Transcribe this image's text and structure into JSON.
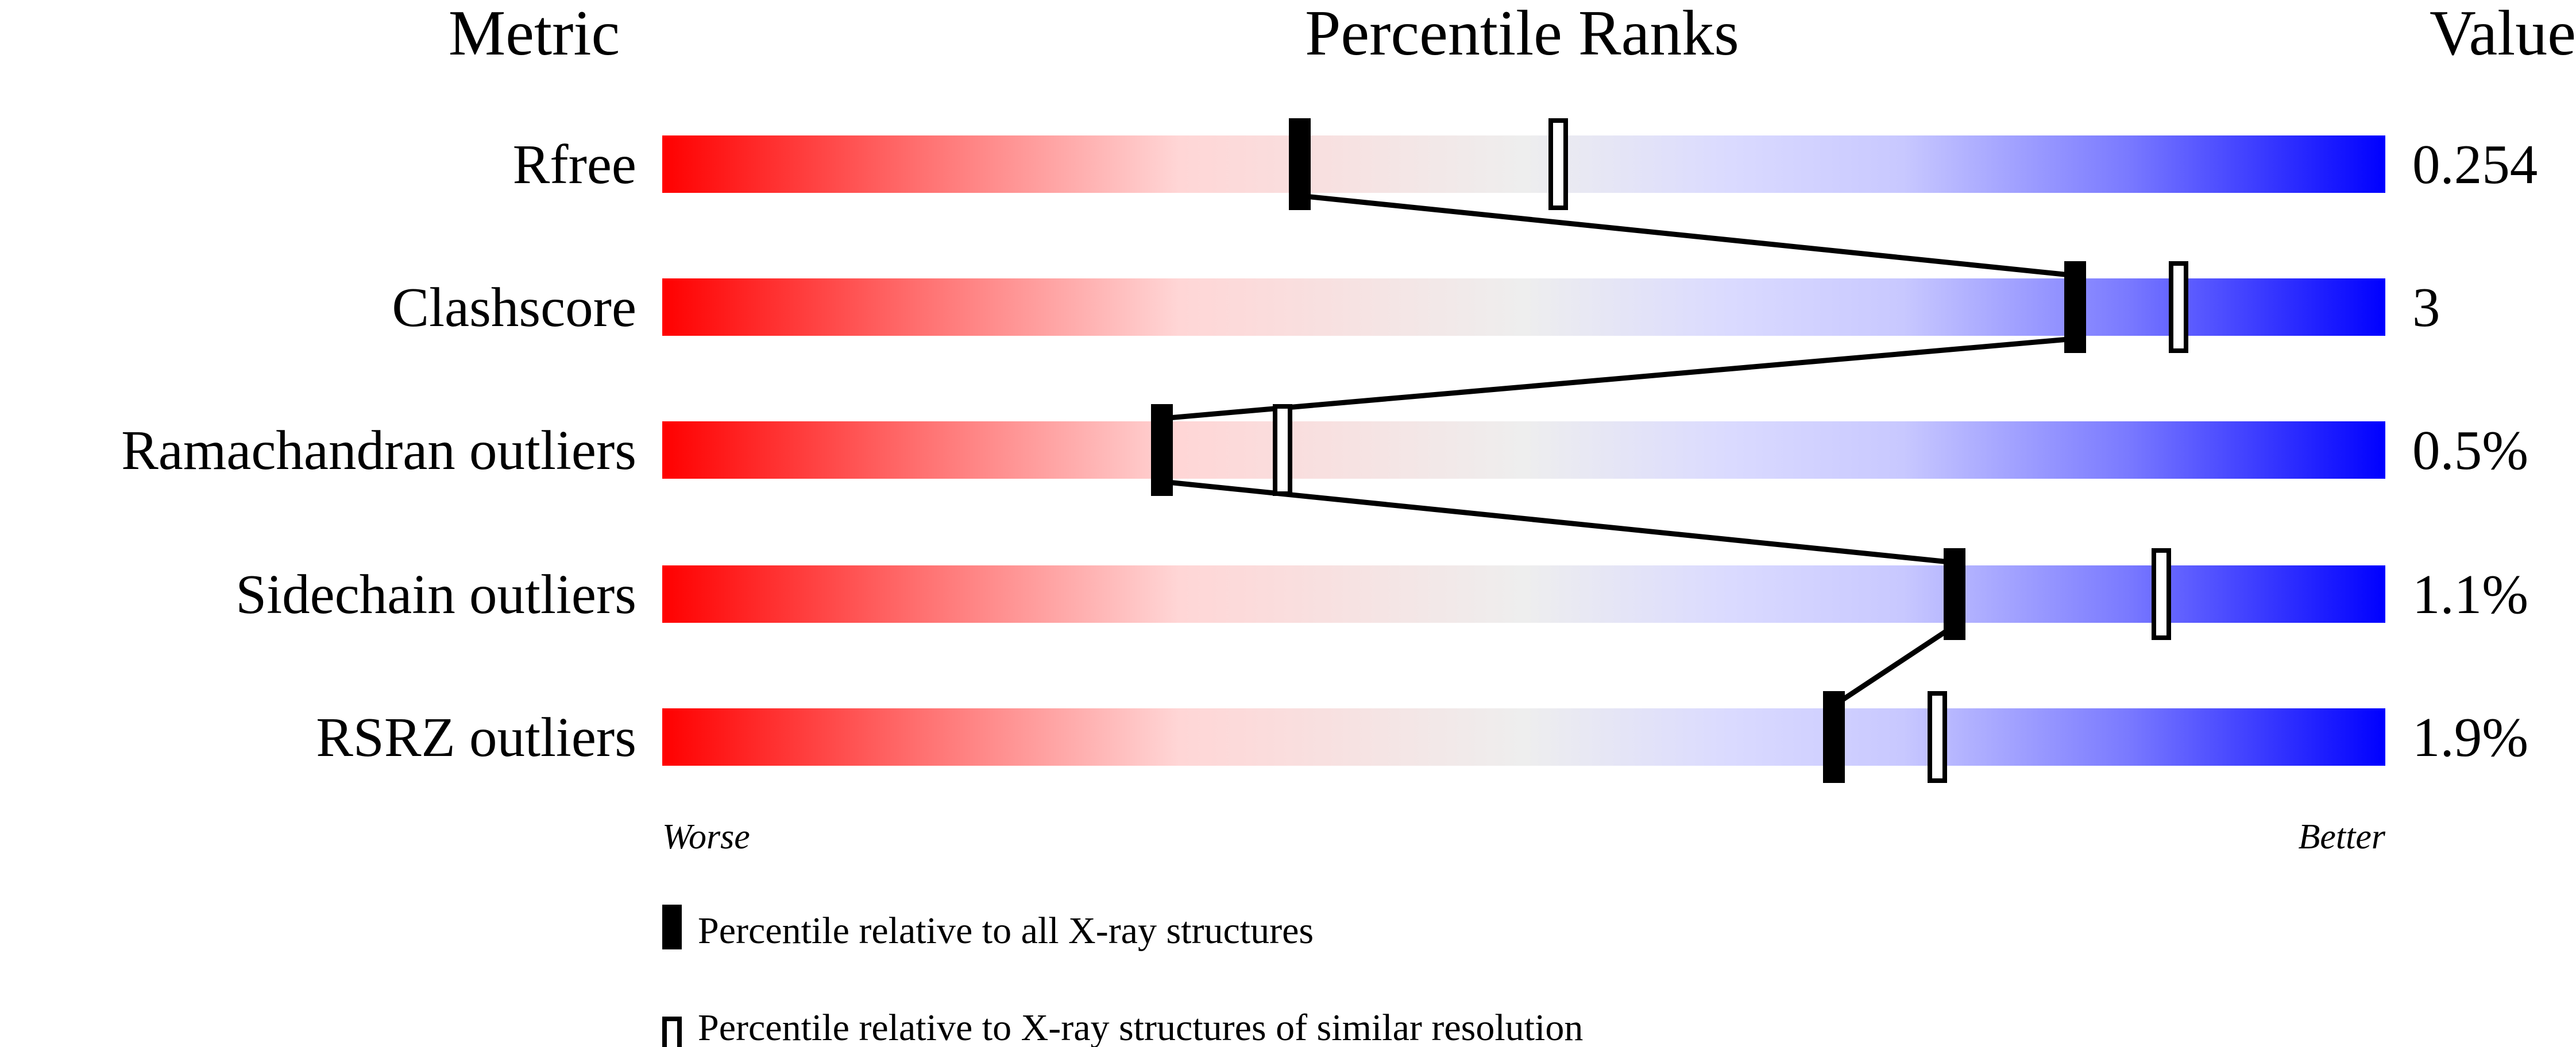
{
  "chart_data": {
    "type": "percentile-slider",
    "headers": {
      "metric": "Metric",
      "percentile": "Percentile Ranks",
      "value": "Value"
    },
    "metrics": [
      {
        "name": "Rfree",
        "value": "0.254",
        "percentile_all": 37,
        "percentile_similar": 52
      },
      {
        "name": "Clashscore",
        "value": "3",
        "percentile_all": 82,
        "percentile_similar": 88
      },
      {
        "name": "Ramachandran outliers",
        "value": "0.5%",
        "percentile_all": 29,
        "percentile_similar": 36
      },
      {
        "name": "Sidechain outliers",
        "value": "1.1%",
        "percentile_all": 75,
        "percentile_similar": 87
      },
      {
        "name": "RSRZ outliers",
        "value": "1.9%",
        "percentile_all": 68,
        "percentile_similar": 74
      }
    ],
    "axis": {
      "left_label": "Worse",
      "right_label": "Better",
      "range": [
        0,
        100
      ]
    },
    "legend": [
      {
        "marker": "filled",
        "label": "Percentile relative to all X-ray structures"
      },
      {
        "marker": "open",
        "label": "Percentile relative to X-ray structures of similar resolution"
      }
    ],
    "colors": {
      "worse": "#ff0000",
      "middle": "#eeeeee",
      "better": "#0000ff",
      "marker": "#000000"
    }
  }
}
